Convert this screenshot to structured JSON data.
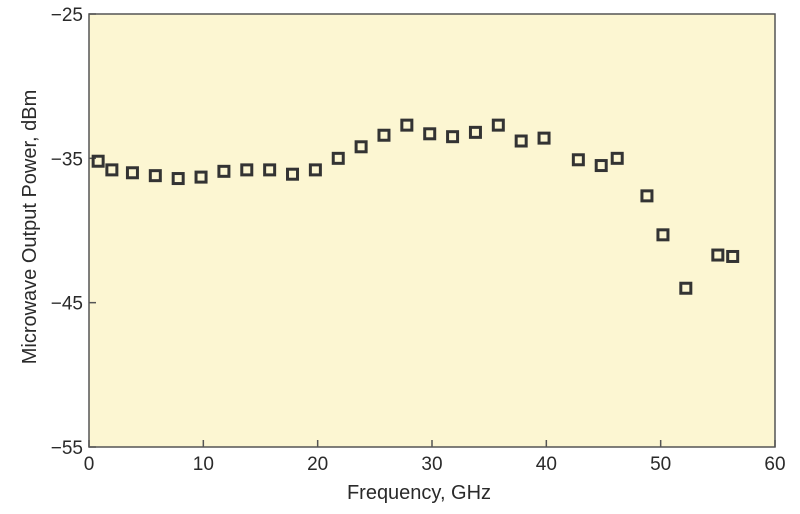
{
  "chart_data": {
    "type": "scatter",
    "title": "",
    "xlabel": "Frequency, GHz",
    "ylabel": "Microwave Output Power, dBm",
    "xlim": [
      0,
      60
    ],
    "ylim": [
      -55,
      -25
    ],
    "xticks": [
      0,
      10,
      20,
      30,
      40,
      50,
      60
    ],
    "yticks": [
      -55,
      -45,
      -35,
      -25
    ],
    "xtick_labels": [
      "0",
      "10",
      "20",
      "30",
      "40",
      "50",
      "60"
    ],
    "ytick_labels": [
      "−55",
      "−45",
      "−35",
      "−25"
    ],
    "grid": false,
    "legend": "none",
    "colors": {
      "plot_background": "#fcf6d2",
      "frame": "#555555",
      "marker": "#333333"
    },
    "points": [
      {
        "x": 0.8,
        "y": -35.2
      },
      {
        "x": 2.0,
        "y": -35.8
      },
      {
        "x": 3.8,
        "y": -36.0
      },
      {
        "x": 5.8,
        "y": -36.2
      },
      {
        "x": 7.8,
        "y": -36.4
      },
      {
        "x": 9.8,
        "y": -36.3
      },
      {
        "x": 11.8,
        "y": -35.9
      },
      {
        "x": 13.8,
        "y": -35.8
      },
      {
        "x": 15.8,
        "y": -35.8
      },
      {
        "x": 17.8,
        "y": -36.1
      },
      {
        "x": 19.8,
        "y": -35.8
      },
      {
        "x": 21.8,
        "y": -35.0
      },
      {
        "x": 23.8,
        "y": -34.2
      },
      {
        "x": 25.8,
        "y": -33.4
      },
      {
        "x": 27.8,
        "y": -32.7
      },
      {
        "x": 29.8,
        "y": -33.3
      },
      {
        "x": 31.8,
        "y": -33.5
      },
      {
        "x": 33.8,
        "y": -33.2
      },
      {
        "x": 35.8,
        "y": -32.7
      },
      {
        "x": 37.8,
        "y": -33.8
      },
      {
        "x": 39.8,
        "y": -33.6
      },
      {
        "x": 42.8,
        "y": -35.1
      },
      {
        "x": 44.8,
        "y": -35.5
      },
      {
        "x": 46.2,
        "y": -35.0
      },
      {
        "x": 48.8,
        "y": -37.6
      },
      {
        "x": 50.2,
        "y": -40.3
      },
      {
        "x": 52.2,
        "y": -44.0
      },
      {
        "x": 55.0,
        "y": -41.7
      },
      {
        "x": 56.3,
        "y": -41.8
      }
    ]
  }
}
